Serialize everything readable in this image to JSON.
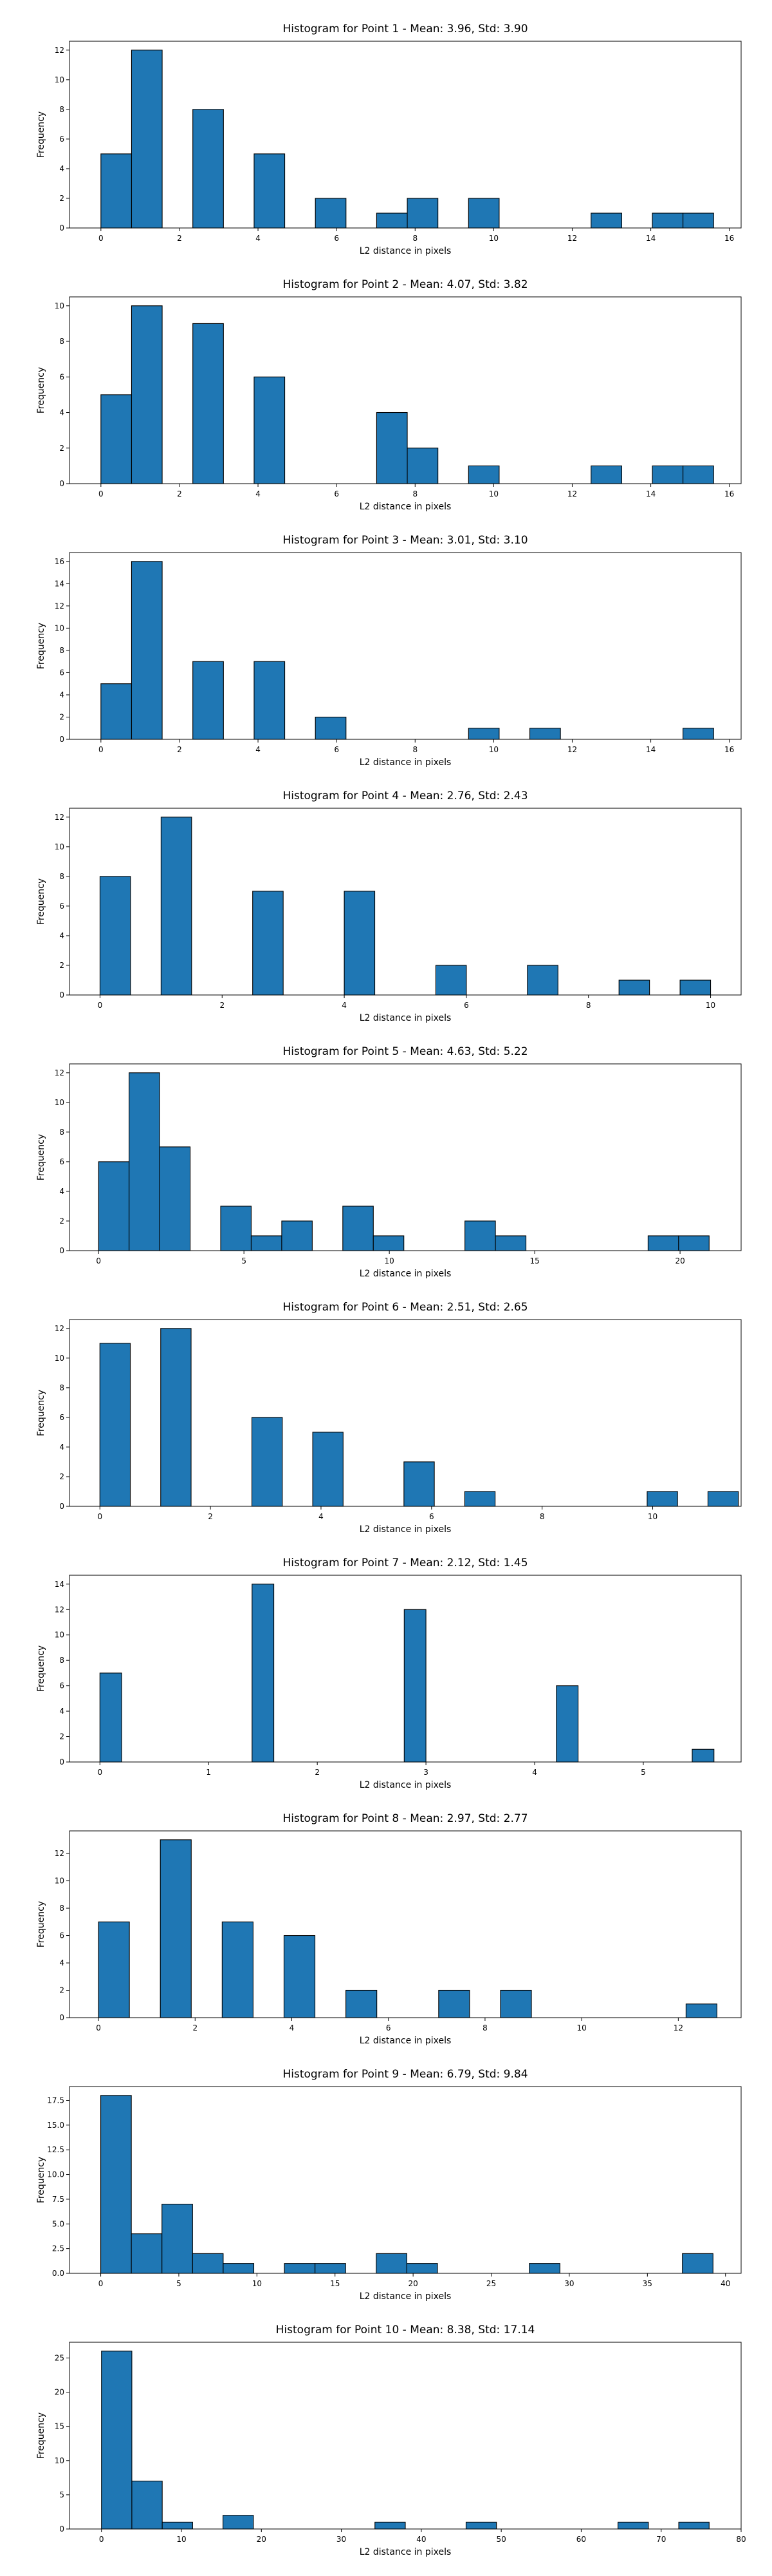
{
  "figure": {
    "background": "#ffffff",
    "bar_color": "#1f77b4",
    "edge_color": "#000000"
  },
  "chart_data": [
    {
      "type": "bar",
      "title": "Histogram for Point 1 - Mean: 3.96, Std: 3.90",
      "xlabel": "L2 distance in pixels",
      "ylabel": "Frequency",
      "xlim": [
        -0.8,
        16.3
      ],
      "ylim": [
        0,
        12.6
      ],
      "xticks": [
        0,
        2,
        4,
        6,
        8,
        10,
        12,
        14,
        16
      ],
      "yticks": [
        0,
        2,
        4,
        6,
        8,
        10,
        12
      ],
      "bins": [
        [
          0,
          0.78,
          5
        ],
        [
          0.78,
          1.56,
          12
        ],
        [
          2.34,
          3.12,
          8
        ],
        [
          3.9,
          4.68,
          5
        ],
        [
          5.46,
          6.24,
          2
        ],
        [
          7.02,
          7.8,
          1
        ],
        [
          7.8,
          8.58,
          2
        ],
        [
          9.36,
          10.14,
          2
        ],
        [
          12.48,
          13.26,
          1
        ],
        [
          14.04,
          14.82,
          1
        ],
        [
          14.82,
          15.6,
          1
        ]
      ]
    },
    {
      "type": "bar",
      "title": "Histogram for Point 2 - Mean: 4.07, Std: 3.82",
      "xlabel": "L2 distance in pixels",
      "ylabel": "Frequency",
      "xlim": [
        -0.8,
        16.3
      ],
      "ylim": [
        0,
        10.5
      ],
      "xticks": [
        0,
        2,
        4,
        6,
        8,
        10,
        12,
        14,
        16
      ],
      "yticks": [
        0,
        2,
        4,
        6,
        8,
        10
      ],
      "bins": [
        [
          0,
          0.78,
          5
        ],
        [
          0.78,
          1.56,
          10
        ],
        [
          2.34,
          3.12,
          9
        ],
        [
          3.9,
          4.68,
          6
        ],
        [
          7.02,
          7.8,
          4
        ],
        [
          7.8,
          8.58,
          2
        ],
        [
          9.36,
          10.14,
          1
        ],
        [
          12.48,
          13.26,
          1
        ],
        [
          14.04,
          14.82,
          1
        ],
        [
          14.82,
          15.6,
          1
        ]
      ]
    },
    {
      "type": "bar",
      "title": "Histogram for Point 3 - Mean: 3.01, Std: 3.10",
      "xlabel": "L2 distance in pixels",
      "ylabel": "Frequency",
      "xlim": [
        -0.8,
        16.3
      ],
      "ylim": [
        0,
        16.8
      ],
      "xticks": [
        0,
        2,
        4,
        6,
        8,
        10,
        12,
        14,
        16
      ],
      "yticks": [
        0,
        2,
        4,
        6,
        8,
        10,
        12,
        14,
        16
      ],
      "bins": [
        [
          0,
          0.78,
          5
        ],
        [
          0.78,
          1.56,
          16
        ],
        [
          2.34,
          3.12,
          7
        ],
        [
          3.9,
          4.68,
          7
        ],
        [
          5.46,
          6.24,
          2
        ],
        [
          9.36,
          10.14,
          1
        ],
        [
          10.92,
          11.7,
          1
        ],
        [
          14.82,
          15.6,
          1
        ]
      ]
    },
    {
      "type": "bar",
      "title": "Histogram for Point 4 - Mean: 2.76, Std: 2.43",
      "xlabel": "L2 distance in pixels",
      "ylabel": "Frequency",
      "xlim": [
        -0.5,
        10.5
      ],
      "ylim": [
        0,
        12.6
      ],
      "xticks": [
        0,
        2,
        4,
        6,
        8,
        10
      ],
      "yticks": [
        0,
        2,
        4,
        6,
        8,
        10,
        12
      ],
      "bins": [
        [
          0,
          0.5,
          8
        ],
        [
          1.0,
          1.5,
          12
        ],
        [
          2.5,
          3.0,
          7
        ],
        [
          4.0,
          4.5,
          7
        ],
        [
          5.5,
          6.0,
          2
        ],
        [
          7.0,
          7.5,
          2
        ],
        [
          8.5,
          9.0,
          1
        ],
        [
          9.5,
          10.0,
          1
        ]
      ]
    },
    {
      "type": "bar",
      "title": "Histogram for Point 5 - Mean: 4.63, Std: 5.22",
      "xlabel": "L2 distance in pixels",
      "ylabel": "Frequency",
      "xlim": [
        -1.0,
        22.1
      ],
      "ylim": [
        0,
        12.6
      ],
      "xticks": [
        0,
        5,
        10,
        15,
        20
      ],
      "yticks": [
        0,
        2,
        4,
        6,
        8,
        10,
        12
      ],
      "bins": [
        [
          0,
          1.05,
          6
        ],
        [
          1.05,
          2.1,
          12
        ],
        [
          2.1,
          3.15,
          7
        ],
        [
          4.2,
          5.25,
          3
        ],
        [
          5.25,
          6.3,
          1
        ],
        [
          6.3,
          7.35,
          2
        ],
        [
          8.4,
          9.45,
          3
        ],
        [
          9.45,
          10.5,
          1
        ],
        [
          12.6,
          13.65,
          2
        ],
        [
          13.65,
          14.7,
          1
        ],
        [
          18.9,
          19.95,
          1
        ],
        [
          19.95,
          21.0,
          1
        ]
      ]
    },
    {
      "type": "bar",
      "title": "Histogram for Point 6 - Mean: 2.51, Std: 2.65",
      "xlabel": "L2 distance in pixels",
      "ylabel": "Frequency",
      "xlim": [
        -0.55,
        11.6
      ],
      "ylim": [
        0,
        12.6
      ],
      "xticks": [
        0,
        2,
        4,
        6,
        8,
        10
      ],
      "yticks": [
        0,
        2,
        4,
        6,
        8,
        10,
        12
      ],
      "bins": [
        [
          0,
          0.55,
          11
        ],
        [
          1.1,
          1.65,
          12
        ],
        [
          2.75,
          3.3,
          6
        ],
        [
          3.85,
          4.4,
          5
        ],
        [
          5.5,
          6.05,
          3
        ],
        [
          6.6,
          7.15,
          1
        ],
        [
          9.9,
          10.45,
          1
        ],
        [
          11.0,
          11.55,
          1
        ]
      ]
    },
    {
      "type": "bar",
      "title": "Histogram for Point 7 - Mean: 2.12, Std: 1.45",
      "xlabel": "L2 distance in pixels",
      "ylabel": "Frequency",
      "xlim": [
        -0.28,
        5.9
      ],
      "ylim": [
        0,
        14.7
      ],
      "xticks": [
        0,
        1,
        2,
        3,
        4,
        5
      ],
      "yticks": [
        0,
        2,
        4,
        6,
        8,
        10,
        12,
        14
      ],
      "bins": [
        [
          0,
          0.2,
          7
        ],
        [
          1.4,
          1.6,
          14
        ],
        [
          2.8,
          3.0,
          12
        ],
        [
          4.2,
          4.4,
          6
        ],
        [
          5.45,
          5.65,
          1
        ]
      ]
    },
    {
      "type": "bar",
      "title": "Histogram for Point 8 - Mean: 2.97, Std: 2.77",
      "xlabel": "L2 distance in pixels",
      "ylabel": "Frequency",
      "xlim": [
        -0.6,
        13.3
      ],
      "ylim": [
        0,
        13.65
      ],
      "xticks": [
        0,
        2,
        4,
        6,
        8,
        10,
        12
      ],
      "yticks": [
        0,
        2,
        4,
        6,
        8,
        10,
        12
      ],
      "bins": [
        [
          0,
          0.64,
          7
        ],
        [
          1.28,
          1.92,
          13
        ],
        [
          2.56,
          3.2,
          7
        ],
        [
          3.84,
          4.48,
          6
        ],
        [
          5.12,
          5.76,
          2
        ],
        [
          7.04,
          7.68,
          2
        ],
        [
          8.32,
          8.96,
          2
        ],
        [
          12.16,
          12.8,
          1
        ]
      ]
    },
    {
      "type": "bar",
      "title": "Histogram for Point 9 - Mean: 6.79, Std: 9.84",
      "xlabel": "L2 distance in pixels",
      "ylabel": "Frequency",
      "xlim": [
        -2.0,
        41.0
      ],
      "ylim": [
        0,
        18.9
      ],
      "xticks": [
        0,
        5,
        10,
        15,
        20,
        25,
        30,
        35,
        40
      ],
      "yticks": [
        0,
        2.5,
        5.0,
        7.5,
        10.0,
        12.5,
        15.0,
        17.5
      ],
      "ytick_labels": [
        "0.0",
        "2.5",
        "5.0",
        "7.5",
        "10.0",
        "12.5",
        "15.0",
        "17.5"
      ],
      "bins": [
        [
          0,
          1.96,
          18
        ],
        [
          1.96,
          3.92,
          4
        ],
        [
          3.92,
          5.88,
          7
        ],
        [
          5.88,
          7.84,
          2
        ],
        [
          7.84,
          9.8,
          1
        ],
        [
          11.76,
          13.72,
          1
        ],
        [
          13.72,
          15.68,
          1
        ],
        [
          17.64,
          19.6,
          2
        ],
        [
          19.6,
          21.56,
          1
        ],
        [
          27.44,
          29.4,
          1
        ],
        [
          37.24,
          39.2,
          2
        ]
      ]
    },
    {
      "type": "bar",
      "title": "Histogram for Point 10 - Mean: 8.38, Std: 17.14",
      "xlabel": "L2 distance in pixels",
      "ylabel": "Frequency",
      "xlim": [
        -4.0,
        80.0
      ],
      "ylim": [
        0,
        27.3
      ],
      "xticks": [
        0,
        10,
        20,
        30,
        40,
        50,
        60,
        70,
        80
      ],
      "yticks": [
        0,
        5,
        10,
        15,
        20,
        25
      ],
      "bins": [
        [
          0,
          3.8,
          26
        ],
        [
          3.8,
          7.6,
          7
        ],
        [
          7.6,
          11.4,
          1
        ],
        [
          15.2,
          19.0,
          2
        ],
        [
          34.2,
          38.0,
          1
        ],
        [
          45.6,
          49.4,
          1
        ],
        [
          64.6,
          68.4,
          1
        ],
        [
          72.2,
          76.0,
          1
        ]
      ]
    }
  ]
}
